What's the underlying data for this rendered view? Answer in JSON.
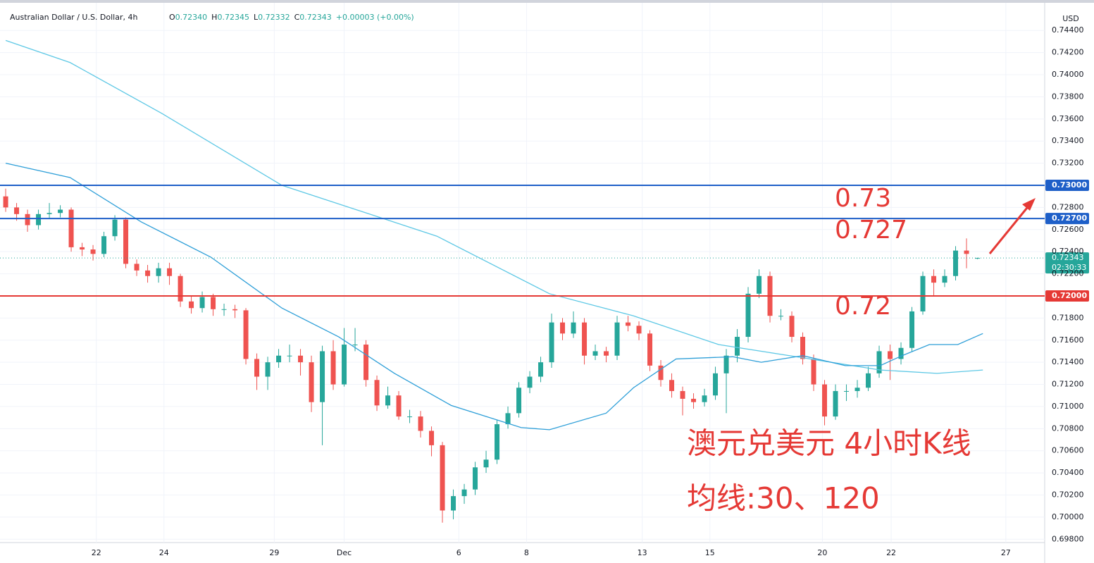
{
  "chart_data": {
    "type": "candlestick",
    "title": "Australian Dollar / U.S. Dollar, 4h",
    "header_stats": [
      {
        "label": "O",
        "value": "0.72340"
      },
      {
        "label": "H",
        "value": "0.72345"
      },
      {
        "label": "L",
        "value": "0.72332"
      },
      {
        "label": "C",
        "value": "0.72343"
      },
      {
        "label": "",
        "value": "+0.00003 (+0.00%)"
      }
    ],
    "y_unit": "USD",
    "up_color": "#26a69a",
    "down_color": "#ef5350",
    "open": [
      0.729,
      0.728,
      0.7274,
      0.7264,
      0.7274,
      0.7275,
      0.7278,
      0.7244,
      0.7242,
      0.7238,
      0.7254,
      0.7269,
      0.7229,
      0.7223,
      0.7218,
      0.7225,
      0.7218,
      0.7195,
      0.7189,
      0.7199,
      0.7188,
      0.7188,
      0.7187,
      0.7143,
      0.7127,
      0.714,
      0.7146,
      0.7146,
      0.714,
      0.7104,
      0.715,
      0.712,
      0.7156,
      0.7156,
      0.7124,
      0.7101,
      0.711,
      0.7091,
      0.7091,
      0.7078,
      0.7065,
      0.7006,
      0.7019,
      0.7025,
      0.7045,
      0.7052,
      0.7084,
      0.7094,
      0.7117,
      0.7127,
      0.714,
      0.7176,
      0.7166,
      0.7176,
      0.7146,
      0.715,
      0.7146,
      0.7176,
      0.7173,
      0.7166,
      0.7137,
      0.7124,
      0.7114,
      0.7107,
      0.7104,
      0.711,
      0.713,
      0.7146,
      0.7163,
      0.7202,
      0.7218,
      0.7182,
      0.7182,
      0.7163,
      0.7143,
      0.712,
      0.7091,
      0.7114,
      0.7114,
      0.7117,
      0.713,
      0.715,
      0.7143,
      0.7153,
      0.7186,
      0.7218,
      0.7212,
      0.7218,
      0.7241,
      0.7234
    ],
    "high": [
      0.7297,
      0.7284,
      0.7278,
      0.7278,
      0.7284,
      0.7282,
      0.728,
      0.7248,
      0.7246,
      0.7258,
      0.7273,
      0.7271,
      0.7233,
      0.7228,
      0.723,
      0.723,
      0.722,
      0.72,
      0.7204,
      0.7202,
      0.7193,
      0.7192,
      0.7189,
      0.7148,
      0.7145,
      0.7152,
      0.7156,
      0.7152,
      0.7146,
      0.7155,
      0.716,
      0.7171,
      0.7171,
      0.716,
      0.7128,
      0.7118,
      0.7114,
      0.7097,
      0.7096,
      0.7082,
      0.7068,
      0.7025,
      0.703,
      0.705,
      0.706,
      0.7088,
      0.71,
      0.7122,
      0.7132,
      0.7145,
      0.7184,
      0.718,
      0.7186,
      0.718,
      0.7156,
      0.7154,
      0.7182,
      0.7182,
      0.7177,
      0.7169,
      0.7142,
      0.713,
      0.7118,
      0.7112,
      0.7116,
      0.7136,
      0.7152,
      0.717,
      0.7208,
      0.7224,
      0.7222,
      0.7188,
      0.7186,
      0.7167,
      0.7147,
      0.7124,
      0.712,
      0.712,
      0.7124,
      0.7136,
      0.7155,
      0.7156,
      0.7158,
      0.719,
      0.7222,
      0.7224,
      0.7224,
      0.7245,
      0.7252,
      0.72345
    ],
    "low": [
      0.7276,
      0.7268,
      0.7258,
      0.726,
      0.727,
      0.7271,
      0.724,
      0.7236,
      0.7232,
      0.7235,
      0.725,
      0.7225,
      0.7218,
      0.7212,
      0.7212,
      0.721,
      0.719,
      0.7184,
      0.7185,
      0.7182,
      0.7182,
      0.718,
      0.7138,
      0.7115,
      0.7115,
      0.7135,
      0.714,
      0.7128,
      0.7095,
      0.7065,
      0.7115,
      0.7118,
      0.715,
      0.7118,
      0.7096,
      0.7098,
      0.7088,
      0.7085,
      0.7072,
      0.7055,
      0.6995,
      0.6998,
      0.7012,
      0.702,
      0.704,
      0.7048,
      0.708,
      0.709,
      0.7112,
      0.7122,
      0.7135,
      0.716,
      0.7162,
      0.7138,
      0.7142,
      0.714,
      0.7142,
      0.7168,
      0.716,
      0.7132,
      0.7118,
      0.7108,
      0.7092,
      0.7098,
      0.71,
      0.7106,
      0.7094,
      0.714,
      0.7158,
      0.7198,
      0.7176,
      0.7178,
      0.7158,
      0.7138,
      0.7114,
      0.7083,
      0.7088,
      0.7105,
      0.7108,
      0.7114,
      0.7126,
      0.7124,
      0.7138,
      0.715,
      0.7183,
      0.72,
      0.7208,
      0.7214,
      0.7225,
      0.72332
    ],
    "close": [
      0.728,
      0.7274,
      0.7264,
      0.7274,
      0.7275,
      0.7278,
      0.7244,
      0.7242,
      0.7238,
      0.7254,
      0.7269,
      0.7229,
      0.7223,
      0.7218,
      0.7225,
      0.7218,
      0.7195,
      0.7189,
      0.7199,
      0.7188,
      0.7188,
      0.7187,
      0.7143,
      0.7127,
      0.714,
      0.7146,
      0.7146,
      0.714,
      0.7104,
      0.715,
      0.712,
      0.7156,
      0.7156,
      0.7124,
      0.7101,
      0.711,
      0.7091,
      0.7091,
      0.7078,
      0.7065,
      0.7006,
      0.7019,
      0.7025,
      0.7045,
      0.7052,
      0.7084,
      0.7094,
      0.7117,
      0.7127,
      0.714,
      0.7176,
      0.7166,
      0.7176,
      0.7146,
      0.715,
      0.7146,
      0.7176,
      0.7173,
      0.7166,
      0.7137,
      0.7124,
      0.7114,
      0.7107,
      0.7104,
      0.711,
      0.713,
      0.7146,
      0.7163,
      0.7202,
      0.7218,
      0.7182,
      0.7182,
      0.7163,
      0.7143,
      0.712,
      0.7091,
      0.7114,
      0.7114,
      0.7117,
      0.713,
      0.715,
      0.7143,
      0.7153,
      0.7186,
      0.7218,
      0.7212,
      0.7218,
      0.7241,
      0.7238,
      0.72343
    ],
    "lines": [
      {
        "color": "#5ec8e5",
        "x": [
          0,
          5.9,
          14.3,
          25.3,
          39.5,
          49.8,
          57.5,
          65.3,
          73.7,
          80.1,
          85.3,
          89.5
        ],
        "values": [
          0.7431,
          0.7411,
          0.7365,
          0.73,
          0.7254,
          0.7202,
          0.7182,
          0.7156,
          0.7143,
          0.7133,
          0.713,
          0.7133
        ]
      },
      {
        "color": "#2e9fd8",
        "x": [
          0,
          5.9,
          12.4,
          18.8,
          25.3,
          30.5,
          35.6,
          40.8,
          47.2,
          49.8,
          55,
          57.5,
          61.4,
          66.6,
          69.2,
          73,
          76.9,
          80.1,
          82.1,
          84.6,
          87.2,
          89.5
        ],
        "values": [
          0.732,
          0.7307,
          0.7267,
          0.7235,
          0.7189,
          0.7163,
          0.713,
          0.7101,
          0.7081,
          0.7079,
          0.7094,
          0.7117,
          0.7143,
          0.7145,
          0.714,
          0.7146,
          0.7137,
          0.7137,
          0.7146,
          0.7156,
          0.7156,
          0.7166
        ]
      }
    ],
    "hlines": [
      {
        "value": 0.73,
        "label": "0.73000",
        "color": "#1e5fc8"
      },
      {
        "value": 0.727,
        "label": "0.72700",
        "color": "#1e5fc8"
      },
      {
        "value": 0.72,
        "label": "0.72000",
        "color": "#e53935"
      }
    ],
    "last_price": {
      "value": 0.72343,
      "label": "0.72343",
      "countdown": "02:30:33",
      "color": "#26a69a"
    },
    "annotations": [
      "0.73",
      "0.727",
      "0.72",
      "澳元兑美元 4小时K线",
      "均线:30、120"
    ],
    "ylim": [
      0.6977,
      0.7465
    ],
    "yticks": [
      {
        "value": 0.698,
        "label": "0.69800"
      },
      {
        "value": 0.7,
        "label": "0.70000"
      },
      {
        "value": 0.702,
        "label": "0.70200"
      },
      {
        "value": 0.704,
        "label": "0.70400"
      },
      {
        "value": 0.706,
        "label": "0.70600"
      },
      {
        "value": 0.708,
        "label": "0.70800"
      },
      {
        "value": 0.71,
        "label": "0.71000"
      },
      {
        "value": 0.712,
        "label": "0.71200"
      },
      {
        "value": 0.714,
        "label": "0.71400"
      },
      {
        "value": 0.716,
        "label": "0.71600"
      },
      {
        "value": 0.718,
        "label": "0.71800"
      },
      {
        "value": 0.722,
        "label": "0.72200"
      },
      {
        "value": 0.724,
        "label": "0.72400"
      },
      {
        "value": 0.726,
        "label": "0.72600"
      },
      {
        "value": 0.728,
        "label": "0.72800"
      },
      {
        "value": 0.732,
        "label": "0.73200"
      },
      {
        "value": 0.734,
        "label": "0.73400"
      },
      {
        "value": 0.736,
        "label": "0.73600"
      },
      {
        "value": 0.738,
        "label": "0.73800"
      },
      {
        "value": 0.74,
        "label": "0.74000"
      },
      {
        "value": 0.742,
        "label": "0.74200"
      },
      {
        "value": 0.744,
        "label": "0.74400"
      }
    ],
    "xlim": [
      -0.52,
      95.16
    ],
    "xticks": [
      {
        "value": 8.3,
        "label": "22"
      },
      {
        "value": 14.5,
        "label": "24"
      },
      {
        "value": 24.6,
        "label": "29"
      },
      {
        "value": 31,
        "label": "Dec"
      },
      {
        "value": 41.5,
        "label": "6"
      },
      {
        "value": 47.7,
        "label": "8"
      },
      {
        "value": 58.3,
        "label": "13"
      },
      {
        "value": 64.5,
        "label": "15"
      },
      {
        "value": 74.8,
        "label": "20"
      },
      {
        "value": 81.1,
        "label": "22"
      },
      {
        "value": 91.6,
        "label": "27"
      }
    ],
    "grid": true
  }
}
